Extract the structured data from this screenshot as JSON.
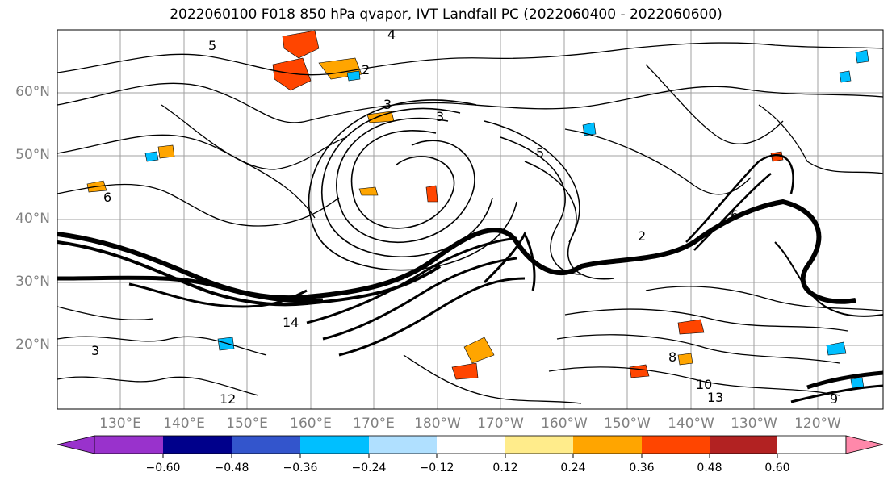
{
  "title": "2022060100 F018 850 hPa qvapor, IVT Landfall PC (2022060400 - 2022060600)",
  "map": {
    "lat_labels": [
      "60°N",
      "50°N",
      "40°N",
      "30°N",
      "20°N"
    ],
    "lon_labels": [
      "130°E",
      "140°E",
      "150°E",
      "160°E",
      "170°E",
      "180°W",
      "170°W",
      "160°W",
      "150°W",
      "140°W",
      "130°W",
      "120°W"
    ],
    "contour_labels": [
      "4",
      "5",
      "3",
      "3",
      "2",
      "5",
      "6",
      "2",
      "14",
      "12",
      "13",
      "10",
      "8",
      "9",
      "6",
      "3"
    ]
  },
  "colorbar": {
    "colors": [
      "#9932cc",
      "#00008b",
      "#3355cc",
      "#00bfff",
      "#b0e0ff",
      "#ffffff",
      "#ffec8b",
      "#ffa500",
      "#ff4500",
      "#b22222",
      "#ff88aa"
    ],
    "tick_labels": [
      "−0.60",
      "−0.48",
      "−0.36",
      "−0.24",
      "−0.12",
      "0.12",
      "0.24",
      "0.36",
      "0.48",
      "0.60"
    ]
  }
}
